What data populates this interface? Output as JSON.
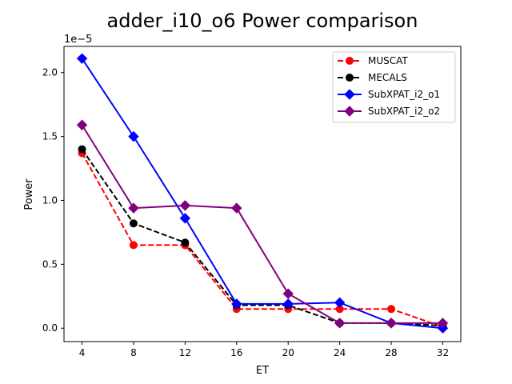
{
  "chart_data": {
    "type": "line",
    "title": "adder_i10_o6 Power comparison",
    "xlabel": "ET",
    "ylabel": "Power",
    "y_offset_label": "1e−5",
    "x_ticks": [
      4,
      8,
      12,
      16,
      20,
      24,
      28,
      32
    ],
    "x_tick_labels": [
      "4",
      "8",
      "12",
      "16",
      "20",
      "24",
      "28",
      "32"
    ],
    "y_ticks": [
      0.0,
      0.5,
      1.0,
      1.5,
      2.0
    ],
    "y_tick_labels": [
      "0.0",
      "0.5",
      "1.0",
      "1.5",
      "2.0"
    ],
    "xlim": [
      2.6,
      33.4
    ],
    "ylim": [
      -0.105,
      2.205
    ],
    "y_scale": "1e-5",
    "grid": false,
    "legend_position": "upper right",
    "series": [
      {
        "name": "MUSCAT",
        "color": "#ff0000",
        "linestyle": "dashed",
        "marker": "circle",
        "x": [
          4,
          8,
          12,
          16,
          20,
          24,
          28,
          32
        ],
        "values": [
          1.37,
          0.65,
          0.65,
          0.15,
          0.15,
          0.15,
          0.15,
          0.01
        ]
      },
      {
        "name": "MECALS",
        "color": "#000000",
        "linestyle": "dashed",
        "marker": "circle",
        "x": [
          4,
          8,
          12,
          16,
          20,
          24,
          28,
          32
        ],
        "values": [
          1.4,
          0.82,
          0.67,
          0.18,
          0.18,
          0.04,
          0.04,
          0.02
        ]
      },
      {
        "name": "SubXPAT_i2_o1",
        "color": "#0000ff",
        "linestyle": "solid",
        "marker": "diamond",
        "x": [
          4,
          8,
          12,
          16,
          20,
          24,
          28,
          32
        ],
        "values": [
          2.11,
          1.5,
          0.86,
          0.19,
          0.19,
          0.2,
          0.04,
          0.0
        ]
      },
      {
        "name": "SubXPAT_i2_o2",
        "color": "#800080",
        "linestyle": "solid",
        "marker": "diamond",
        "x": [
          4,
          8,
          12,
          16,
          20,
          24,
          28,
          32
        ],
        "values": [
          1.59,
          0.94,
          0.96,
          0.94,
          0.27,
          0.04,
          0.04,
          0.04
        ]
      }
    ]
  }
}
